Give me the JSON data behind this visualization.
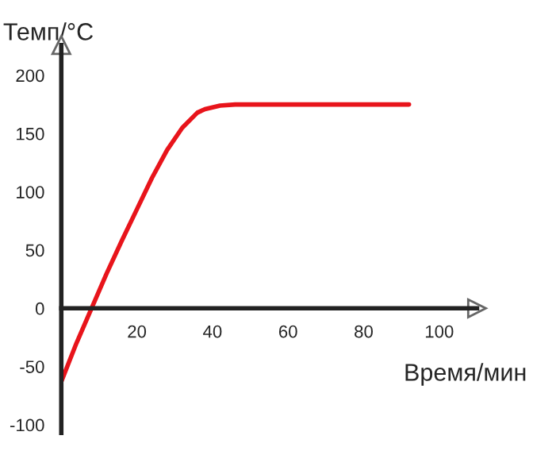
{
  "chart_data": {
    "type": "line",
    "xlabel": "Время/мин",
    "ylabel": "Темп/°C",
    "x": [
      0,
      4,
      8,
      12,
      16,
      20,
      24,
      28,
      32,
      36,
      38,
      42,
      46,
      92
    ],
    "series": [
      {
        "color": "#e8141b",
        "values": [
          -63,
          -30,
          0,
          30,
          58,
          85,
          112,
          136,
          155,
          168,
          171,
          174,
          175,
          175
        ]
      }
    ],
    "xlim": [
      0,
      110
    ],
    "ylim": [
      -107,
      226
    ],
    "xticks": [
      20,
      40,
      60,
      80,
      100
    ],
    "yticks": [
      -100,
      -50,
      0,
      50,
      100,
      150,
      200
    ],
    "grid": false,
    "legend": false,
    "marker": "none",
    "line_style": "solid"
  }
}
